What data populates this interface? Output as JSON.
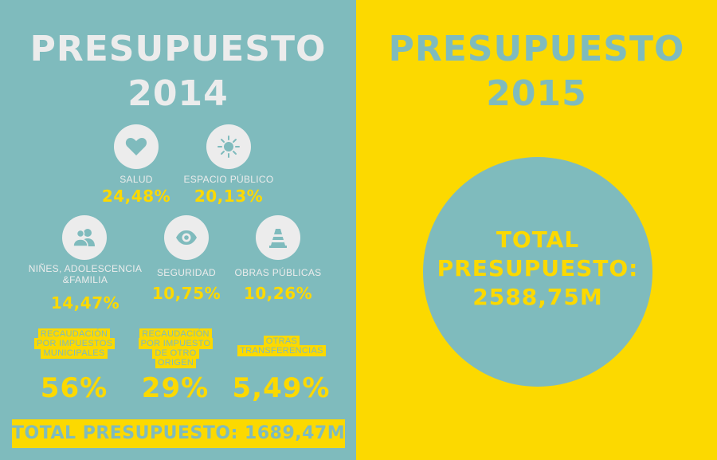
{
  "left": {
    "title": "PRESUPUESTO",
    "year": "2014",
    "categories": [
      {
        "icon": "heart-icon",
        "label": "SALUD",
        "pct": "24,48%"
      },
      {
        "icon": "sun-icon",
        "label": "ESPACIO PÚBLICO",
        "pct": "20,13%"
      },
      {
        "icon": "people-icon",
        "label": "NIÑES, ADOLESCENCIA &FAMILIA",
        "pct": "14,47%"
      },
      {
        "icon": "eye-icon",
        "label": "SEGURIDAD",
        "pct": "10,75%"
      },
      {
        "icon": "traffic-cone-icon",
        "label": "OBRAS PÚBLICAS",
        "pct": "10,26%"
      }
    ],
    "sources": [
      {
        "label": "RECAUDACIÓN POR IMPUESTOS MUNICIPALES",
        "pct": "56%"
      },
      {
        "label": "RECAUDACIÓN POR IMPUESTO DE OTRO ORIGEN",
        "pct": "29%"
      },
      {
        "label": "OTRAS TRANSFERENCIAS",
        "pct": "5,49%"
      }
    ],
    "total": "TOTAL PRESUPUESTO: 1689,47M"
  },
  "right": {
    "title": "PRESUPUESTO",
    "year": "2015",
    "total_line1": "TOTAL",
    "total_line2": "PRESUPUESTO:",
    "total_value": "2588,75M"
  },
  "colors": {
    "teal": "#7fbbbd",
    "yellow": "#fcd900",
    "light": "#ececec"
  }
}
